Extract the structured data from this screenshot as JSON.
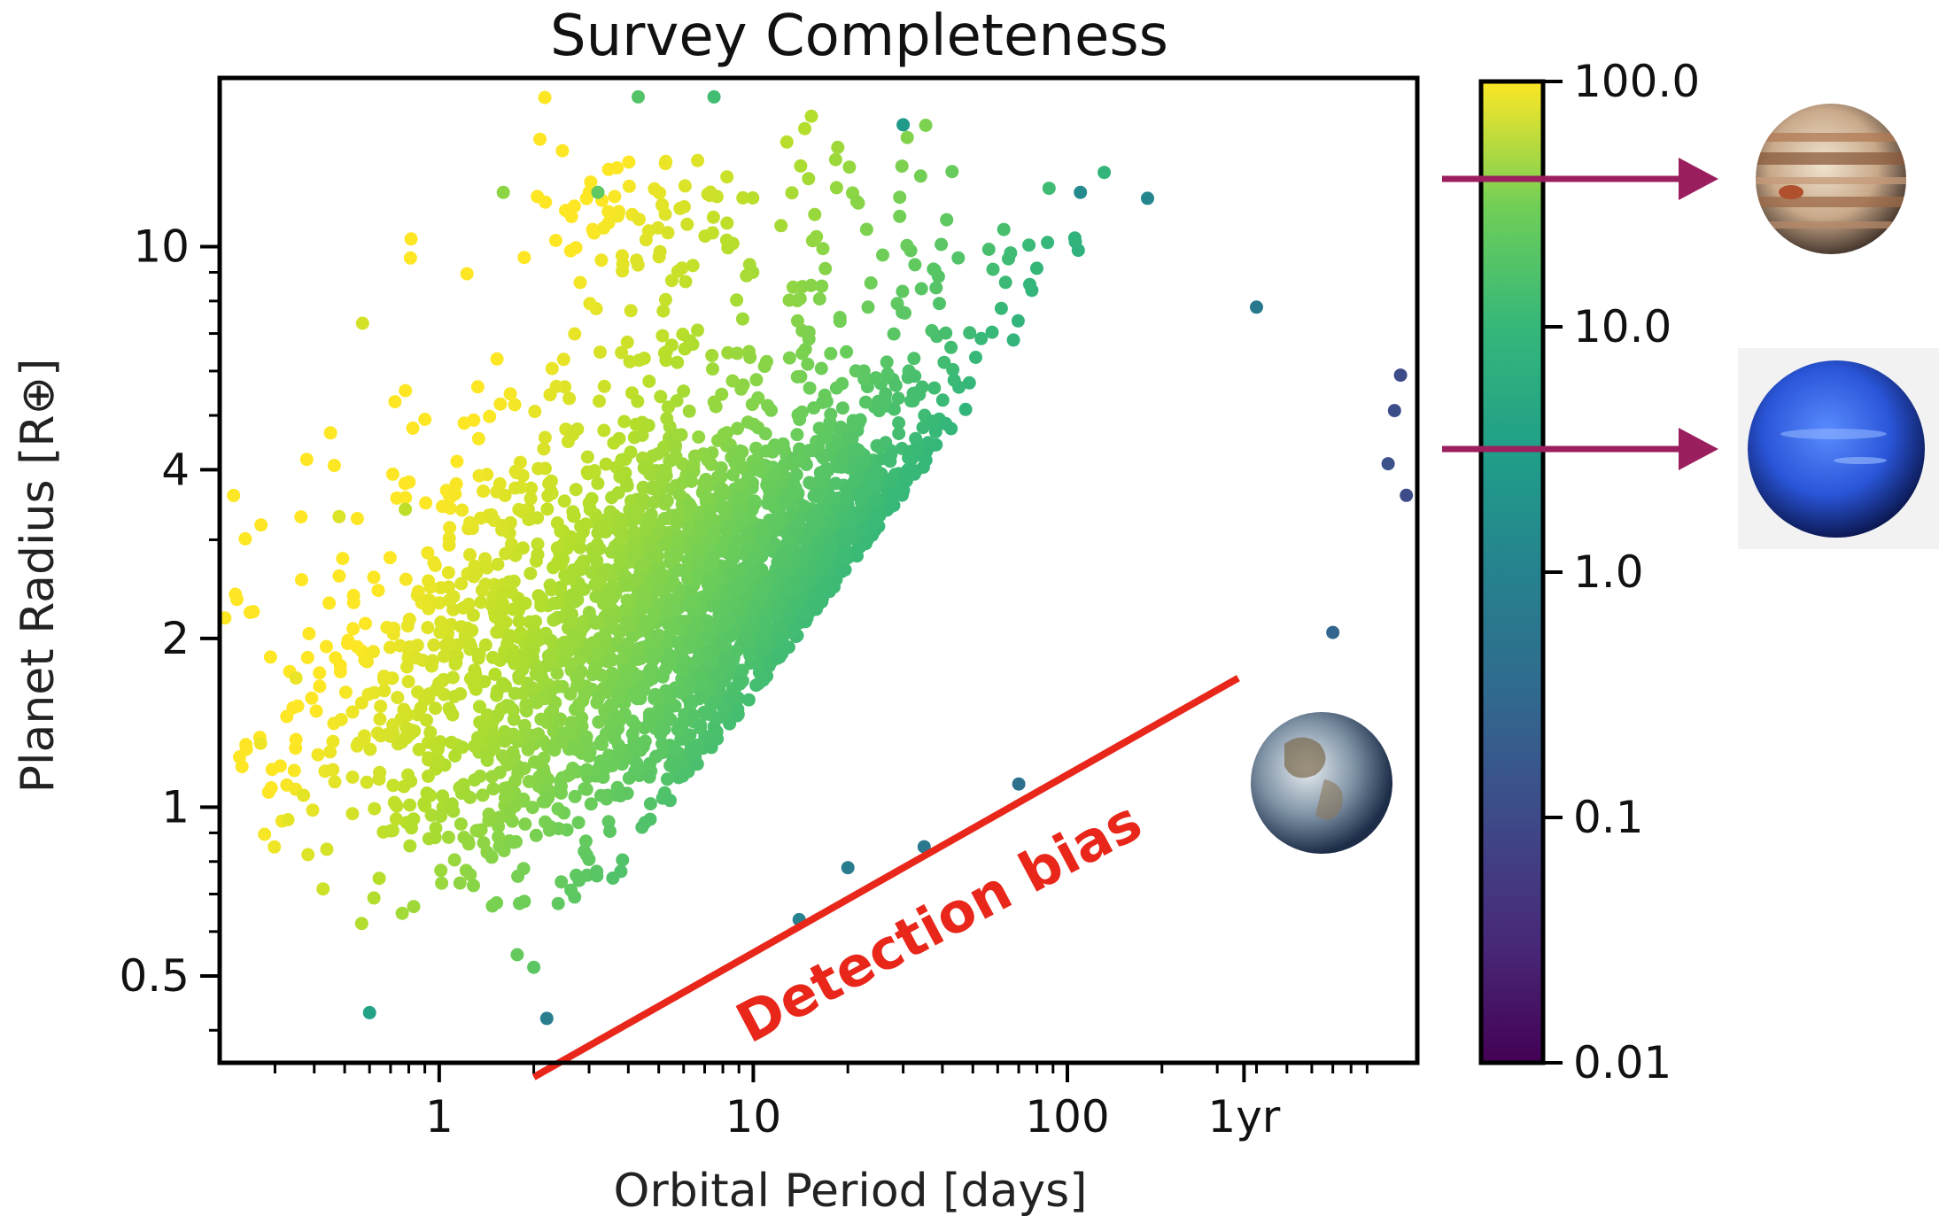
{
  "chart_data": {
    "type": "scatter",
    "title": "Survey Completeness",
    "xlabel": "Orbital Period [days]",
    "ylabel": "Planet Radius [R⊕]",
    "xscale": "log",
    "yscale": "log",
    "xlim": [
      0.2,
      1300
    ],
    "ylim": [
      0.35,
      20
    ],
    "x_ticks": [
      {
        "value": 1,
        "label": "1"
      },
      {
        "value": 10,
        "label": "10"
      },
      {
        "value": 100,
        "label": "100"
      },
      {
        "value": 365,
        "label": "1yr"
      }
    ],
    "y_ticks": [
      {
        "value": 0.5,
        "label": "0.5"
      },
      {
        "value": 1,
        "label": "1"
      },
      {
        "value": 2,
        "label": "2"
      },
      {
        "value": 4,
        "label": "4"
      },
      {
        "value": 10,
        "label": "10"
      }
    ],
    "colorbar": {
      "colormap": "viridis",
      "scale": "log",
      "range": [
        0.01,
        100
      ],
      "tick_labels": [
        "100.0",
        "10.0",
        "1.0",
        "0.1",
        "0.01"
      ],
      "tick_values": [
        100,
        10,
        1,
        0.1,
        0.01
      ]
    },
    "annotation": {
      "text": "Detection bias",
      "color": "#e8271a",
      "line_from": [
        2,
        0.33
      ],
      "line_to": [
        350,
        1.7
      ]
    },
    "planet_markers": [
      {
        "name": "jupiter-icon",
        "radius": 11.2
      },
      {
        "name": "neptune-icon",
        "radius": 3.9
      },
      {
        "name": "earth-icon",
        "radius": 1.0
      }
    ],
    "points_sample": [
      {
        "x": 0.27,
        "y": 1.3,
        "c": 80
      },
      {
        "x": 0.33,
        "y": 0.95,
        "c": 70
      },
      {
        "x": 0.35,
        "y": 1.7,
        "c": 75
      },
      {
        "x": 0.37,
        "y": 1.05,
        "c": 70
      },
      {
        "x": 0.48,
        "y": 3.3,
        "c": 60
      },
      {
        "x": 0.57,
        "y": 7.3,
        "c": 55
      },
      {
        "x": 0.6,
        "y": 0.43,
        "c": 2
      },
      {
        "x": 0.78,
        "y": 3.4,
        "c": 40
      },
      {
        "x": 1.6,
        "y": 12.5,
        "c": 20
      },
      {
        "x": 2.2,
        "y": 0.42,
        "c": 0.5
      },
      {
        "x": 3.2,
        "y": 12.5,
        "c": 10
      },
      {
        "x": 4.3,
        "y": 18.5,
        "c": 8
      },
      {
        "x": 7.5,
        "y": 18.5,
        "c": 6
      },
      {
        "x": 30,
        "y": 16.5,
        "c": 1.5
      },
      {
        "x": 110,
        "y": 12.5,
        "c": 0.8
      },
      {
        "x": 180,
        "y": 12.2,
        "c": 0.7
      },
      {
        "x": 400,
        "y": 7.8,
        "c": 0.4
      },
      {
        "x": 1150,
        "y": 5.9,
        "c": 0.08
      },
      {
        "x": 1100,
        "y": 5.1,
        "c": 0.09
      },
      {
        "x": 1050,
        "y": 4.1,
        "c": 0.1
      },
      {
        "x": 1200,
        "y": 3.6,
        "c": 0.08
      },
      {
        "x": 700,
        "y": 2.05,
        "c": 0.2
      },
      {
        "x": 20,
        "y": 0.78,
        "c": 0.5
      },
      {
        "x": 14,
        "y": 0.63,
        "c": 0.6
      },
      {
        "x": 35,
        "y": 0.85,
        "c": 0.4
      },
      {
        "x": 70,
        "y": 1.1,
        "c": 0.3
      }
    ],
    "clusters": [
      {
        "x_center": 10,
        "y_center": 2.0,
        "x_spread_dex": 0.55,
        "y_spread_dex": 0.2,
        "count": 1800
      },
      {
        "x_center": 60,
        "y_center": 2.6,
        "x_spread_dex": 0.5,
        "y_spread_dex": 0.13,
        "count": 700
      },
      {
        "x_center": 1.1,
        "y_center": 1.3,
        "x_spread_dex": 0.28,
        "y_spread_dex": 0.14,
        "count": 260
      },
      {
        "x_center": 30,
        "y_center": 7.5,
        "x_spread_dex": 0.6,
        "y_spread_dex": 0.2,
        "count": 180
      },
      {
        "x_center": 4,
        "y_center": 11.5,
        "x_spread_dex": 0.2,
        "y_spread_dex": 0.06,
        "count": 55
      }
    ]
  }
}
